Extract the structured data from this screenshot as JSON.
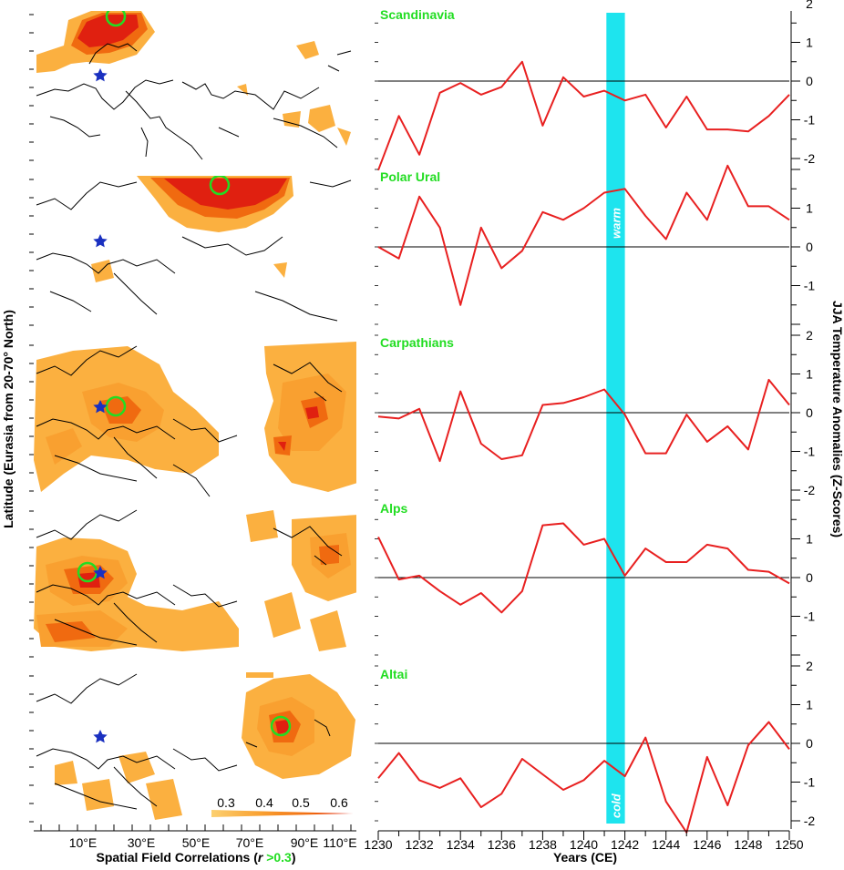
{
  "chart_data": [
    {
      "type": "line",
      "panel": "time-series",
      "x": [
        1230,
        1231,
        1232,
        1233,
        1234,
        1235,
        1236,
        1237,
        1238,
        1239,
        1240,
        1241,
        1242,
        1243,
        1244,
        1245,
        1246,
        1247,
        1248,
        1249,
        1250
      ],
      "xlim": [
        1230,
        1250
      ],
      "x_ticks": [
        "1230",
        "1232",
        "1234",
        "1236",
        "1238",
        "1240",
        "1242",
        "1244",
        "1246",
        "1248",
        "1250"
      ],
      "xlabel": "Years (CE)",
      "ylabel": "JJA Temperature Anomalies (Z-Scores)",
      "series_color": "#e82020",
      "highlight_band": {
        "from": 1241.1,
        "to": 1242.0,
        "color": "#1ee4ee",
        "labels": [
          "warm",
          "cold"
        ]
      },
      "series": [
        {
          "name": "Scandinavia",
          "ylim": [
            -2,
            2
          ],
          "y_ticks": [
            "2",
            "1",
            "0",
            "-1",
            "-2"
          ],
          "values": [
            -2.3,
            -0.9,
            -1.9,
            -0.3,
            -0.05,
            -0.35,
            -0.15,
            0.5,
            -1.15,
            0.1,
            -0.4,
            -0.25,
            -0.5,
            -0.35,
            -1.2,
            -0.4,
            -1.25,
            -1.25,
            -1.3,
            -0.9,
            -0.35
          ]
        },
        {
          "name": "Polar Ural",
          "ylim": [
            -2,
            2
          ],
          "y_ticks": [
            "1",
            "0",
            "-1"
          ],
          "values": [
            0,
            -0.3,
            1.3,
            0.5,
            -1.5,
            0.5,
            -0.55,
            -0.1,
            0.9,
            0.7,
            1.0,
            1.4,
            1.5,
            0.8,
            0.2,
            1.4,
            0.7,
            2.1,
            1.05,
            1.05,
            0.7
          ]
        },
        {
          "name": "Carpathians",
          "ylim": [
            -2,
            2
          ],
          "y_ticks": [
            "2",
            "1",
            "0",
            "-1",
            "-2"
          ],
          "values": [
            -0.1,
            -0.15,
            0.1,
            -1.25,
            0.55,
            -0.8,
            -1.2,
            -1.1,
            0.2,
            0.25,
            0.4,
            0.6,
            -0.05,
            -1.05,
            -1.05,
            -0.05,
            -0.75,
            -0.35,
            -0.95,
            0.85,
            0.2
          ]
        },
        {
          "name": "Alps",
          "ylim": [
            -2,
            2
          ],
          "y_ticks": [
            "1",
            "0",
            "-1"
          ],
          "values": [
            1.05,
            -0.05,
            0.05,
            -0.35,
            -0.7,
            -0.4,
            -0.9,
            -0.35,
            1.35,
            1.4,
            0.85,
            1.0,
            0.05,
            0.75,
            0.4,
            0.4,
            0.85,
            0.75,
            0.2,
            0.15,
            -0.15
          ]
        },
        {
          "name": "Altai",
          "ylim": [
            -2,
            2
          ],
          "y_ticks": [
            "2",
            "1",
            "0",
            "-1",
            "-2"
          ],
          "values": [
            -0.9,
            -0.25,
            -0.95,
            -1.15,
            -0.9,
            -1.65,
            -1.3,
            -0.4,
            -0.8,
            -1.2,
            -0.95,
            -0.45,
            -0.85,
            0.15,
            -1.5,
            -2.3,
            -0.35,
            -1.6,
            -0.05,
            0.55,
            -0.15
          ]
        }
      ]
    },
    {
      "type": "heatmap",
      "panel": "spatial-correlation-maps",
      "xlabel_prefix": "Spatial Field Correlations (",
      "xlabel_var": "r",
      "xlabel_highlight": " >0.3",
      "xlabel_suffix": ")",
      "ylabel": "Latitude (Eurasia from 20-70° North)",
      "lon_ticks": [
        "10°E",
        "30°E",
        "50°E",
        "70°E",
        "90°E",
        "110°E"
      ],
      "colorbar": {
        "ticks": [
          "0.3",
          "0.4",
          "0.5",
          "0.6"
        ],
        "colors": [
          "#fcd070",
          "#f9a030",
          "#f06a10",
          "#e02010"
        ]
      },
      "marker_color": "#1a30c0",
      "circle_color": "#22dd22",
      "maps": [
        "Scandinavia",
        "Polar Ural",
        "Carpathians",
        "Alps",
        "Altai"
      ]
    }
  ]
}
